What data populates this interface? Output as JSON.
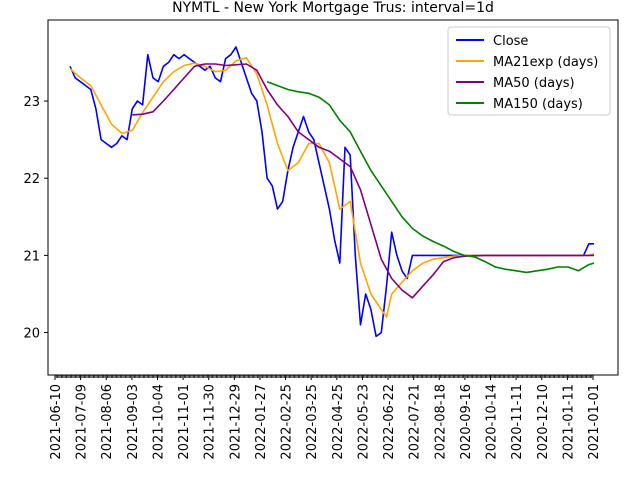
{
  "chart_data": {
    "type": "line",
    "title": "NYMTL - New York Mortgage Trus: interval=1d",
    "xlabel": "",
    "ylabel": "",
    "ylim": [
      19.45,
      24.05
    ],
    "y_ticks": [
      20,
      21,
      22,
      23
    ],
    "x_tick_labels": [
      "2021-06-10",
      "2021-07-09",
      "2021-08-06",
      "2021-09-03",
      "2021-10-04",
      "2021-11-01",
      "2021-11-30",
      "2021-12-29",
      "2022-01-27",
      "2022-02-25",
      "2022-03-25",
      "2022-04-25",
      "2022-05-23",
      "2022-06-22",
      "2022-07-21",
      "2022-08-18",
      "2020-09-16",
      "2020-10-14",
      "2020-11-11",
      "2020-12-10",
      "2021-01-11",
      "2021-01-01"
    ],
    "grid": false,
    "legend_position": "top-right",
    "series": [
      {
        "name": "Close",
        "color": "#0000ff",
        "points": [
          [
            0,
            23.45
          ],
          [
            1,
            23.3
          ],
          [
            2,
            23.25
          ],
          [
            3,
            23.2
          ],
          [
            4,
            23.15
          ],
          [
            5,
            22.9
          ],
          [
            6,
            22.5
          ],
          [
            7,
            22.45
          ],
          [
            8,
            22.4
          ],
          [
            9,
            22.45
          ],
          [
            10,
            22.55
          ],
          [
            11,
            22.5
          ],
          [
            12,
            22.9
          ],
          [
            13,
            23.0
          ],
          [
            14,
            22.95
          ],
          [
            15,
            23.6
          ],
          [
            16,
            23.3
          ],
          [
            17,
            23.25
          ],
          [
            18,
            23.45
          ],
          [
            19,
            23.5
          ],
          [
            20,
            23.6
          ],
          [
            21,
            23.55
          ],
          [
            22,
            23.6
          ],
          [
            23,
            23.55
          ],
          [
            24,
            23.5
          ],
          [
            25,
            23.45
          ],
          [
            26,
            23.4
          ],
          [
            27,
            23.45
          ],
          [
            28,
            23.3
          ],
          [
            29,
            23.25
          ],
          [
            30,
            23.55
          ],
          [
            31,
            23.6
          ],
          [
            32,
            23.7
          ],
          [
            33,
            23.5
          ],
          [
            34,
            23.3
          ],
          [
            35,
            23.1
          ],
          [
            36,
            23.0
          ],
          [
            37,
            22.6
          ],
          [
            38,
            22.0
          ],
          [
            39,
            21.9
          ],
          [
            40,
            21.6
          ],
          [
            41,
            21.7
          ],
          [
            42,
            22.1
          ],
          [
            43,
            22.4
          ],
          [
            44,
            22.6
          ],
          [
            45,
            22.8
          ],
          [
            46,
            22.6
          ],
          [
            47,
            22.5
          ],
          [
            48,
            22.2
          ],
          [
            49,
            21.9
          ],
          [
            50,
            21.6
          ],
          [
            51,
            21.2
          ],
          [
            52,
            20.9
          ],
          [
            53,
            22.4
          ],
          [
            54,
            22.3
          ],
          [
            55,
            21.0
          ],
          [
            56,
            20.1
          ],
          [
            57,
            20.5
          ],
          [
            58,
            20.3
          ],
          [
            59,
            19.95
          ],
          [
            60,
            20.0
          ],
          [
            61,
            20.6
          ],
          [
            62,
            21.3
          ],
          [
            63,
            21.0
          ],
          [
            64,
            20.8
          ],
          [
            65,
            20.7
          ],
          [
            66,
            21.0
          ],
          [
            68,
            21.0
          ],
          [
            70,
            21.0
          ],
          [
            72,
            21.0
          ],
          [
            74,
            21.0
          ],
          [
            76,
            21.0
          ],
          [
            78,
            21.0
          ],
          [
            80,
            21.0
          ],
          [
            82,
            21.0
          ],
          [
            84,
            21.0
          ],
          [
            86,
            21.0
          ],
          [
            88,
            21.0
          ],
          [
            90,
            21.0
          ],
          [
            92,
            21.0
          ],
          [
            94,
            21.0
          ],
          [
            96,
            21.0
          ],
          [
            98,
            21.0
          ],
          [
            99,
            21.0
          ],
          [
            100,
            21.15
          ],
          [
            101,
            21.15
          ]
        ]
      },
      {
        "name": "MA21exp (days)",
        "color": "#ffa500",
        "points": [
          [
            0,
            23.42
          ],
          [
            2,
            23.3
          ],
          [
            4,
            23.2
          ],
          [
            6,
            22.95
          ],
          [
            8,
            22.7
          ],
          [
            10,
            22.58
          ],
          [
            12,
            22.62
          ],
          [
            14,
            22.85
          ],
          [
            16,
            23.05
          ],
          [
            18,
            23.25
          ],
          [
            20,
            23.38
          ],
          [
            22,
            23.46
          ],
          [
            24,
            23.49
          ],
          [
            26,
            23.45
          ],
          [
            28,
            23.38
          ],
          [
            30,
            23.4
          ],
          [
            32,
            23.52
          ],
          [
            34,
            23.56
          ],
          [
            36,
            23.35
          ],
          [
            38,
            22.95
          ],
          [
            40,
            22.45
          ],
          [
            42,
            22.1
          ],
          [
            44,
            22.2
          ],
          [
            46,
            22.45
          ],
          [
            48,
            22.45
          ],
          [
            50,
            22.2
          ],
          [
            52,
            21.6
          ],
          [
            54,
            21.7
          ],
          [
            56,
            20.9
          ],
          [
            58,
            20.5
          ],
          [
            60,
            20.3
          ],
          [
            61,
            20.2
          ],
          [
            62,
            20.5
          ],
          [
            64,
            20.65
          ],
          [
            66,
            20.8
          ],
          [
            68,
            20.9
          ],
          [
            70,
            20.95
          ],
          [
            72,
            20.97
          ],
          [
            74,
            20.99
          ],
          [
            76,
            21.0
          ],
          [
            80,
            21.0
          ],
          [
            85,
            21.0
          ],
          [
            90,
            21.0
          ],
          [
            95,
            21.0
          ],
          [
            100,
            21.0
          ],
          [
            101,
            21.02
          ]
        ]
      },
      {
        "name": "MA50 (days)",
        "color": "#800080",
        "points": [
          [
            12,
            22.82
          ],
          [
            14,
            22.83
          ],
          [
            16,
            22.86
          ],
          [
            18,
            23.0
          ],
          [
            20,
            23.15
          ],
          [
            22,
            23.3
          ],
          [
            24,
            23.45
          ],
          [
            26,
            23.48
          ],
          [
            28,
            23.48
          ],
          [
            30,
            23.46
          ],
          [
            32,
            23.47
          ],
          [
            34,
            23.48
          ],
          [
            36,
            23.4
          ],
          [
            38,
            23.15
          ],
          [
            40,
            22.95
          ],
          [
            42,
            22.8
          ],
          [
            44,
            22.6
          ],
          [
            46,
            22.5
          ],
          [
            48,
            22.4
          ],
          [
            50,
            22.35
          ],
          [
            52,
            22.25
          ],
          [
            54,
            22.15
          ],
          [
            56,
            21.85
          ],
          [
            58,
            21.4
          ],
          [
            60,
            20.95
          ],
          [
            62,
            20.7
          ],
          [
            64,
            20.55
          ],
          [
            66,
            20.45
          ],
          [
            68,
            20.6
          ],
          [
            70,
            20.75
          ],
          [
            72,
            20.92
          ],
          [
            74,
            20.97
          ],
          [
            76,
            20.99
          ],
          [
            80,
            21.0
          ],
          [
            85,
            21.0
          ],
          [
            90,
            21.0
          ],
          [
            95,
            21.0
          ],
          [
            100,
            21.0
          ],
          [
            101,
            21.0
          ]
        ]
      },
      {
        "name": "MA150 (days)",
        "color": "#008000",
        "points": [
          [
            38,
            23.25
          ],
          [
            40,
            23.2
          ],
          [
            42,
            23.15
          ],
          [
            44,
            23.12
          ],
          [
            46,
            23.1
          ],
          [
            48,
            23.05
          ],
          [
            50,
            22.95
          ],
          [
            52,
            22.75
          ],
          [
            54,
            22.6
          ],
          [
            56,
            22.35
          ],
          [
            58,
            22.1
          ],
          [
            60,
            21.9
          ],
          [
            62,
            21.7
          ],
          [
            64,
            21.5
          ],
          [
            66,
            21.35
          ],
          [
            68,
            21.25
          ],
          [
            70,
            21.18
          ],
          [
            72,
            21.12
          ],
          [
            74,
            21.05
          ],
          [
            76,
            21.0
          ],
          [
            78,
            20.98
          ],
          [
            80,
            20.92
          ],
          [
            82,
            20.85
          ],
          [
            84,
            20.82
          ],
          [
            86,
            20.8
          ],
          [
            88,
            20.78
          ],
          [
            90,
            20.8
          ],
          [
            92,
            20.82
          ],
          [
            94,
            20.85
          ],
          [
            96,
            20.85
          ],
          [
            98,
            20.8
          ],
          [
            100,
            20.88
          ],
          [
            101,
            20.9
          ]
        ]
      }
    ]
  }
}
